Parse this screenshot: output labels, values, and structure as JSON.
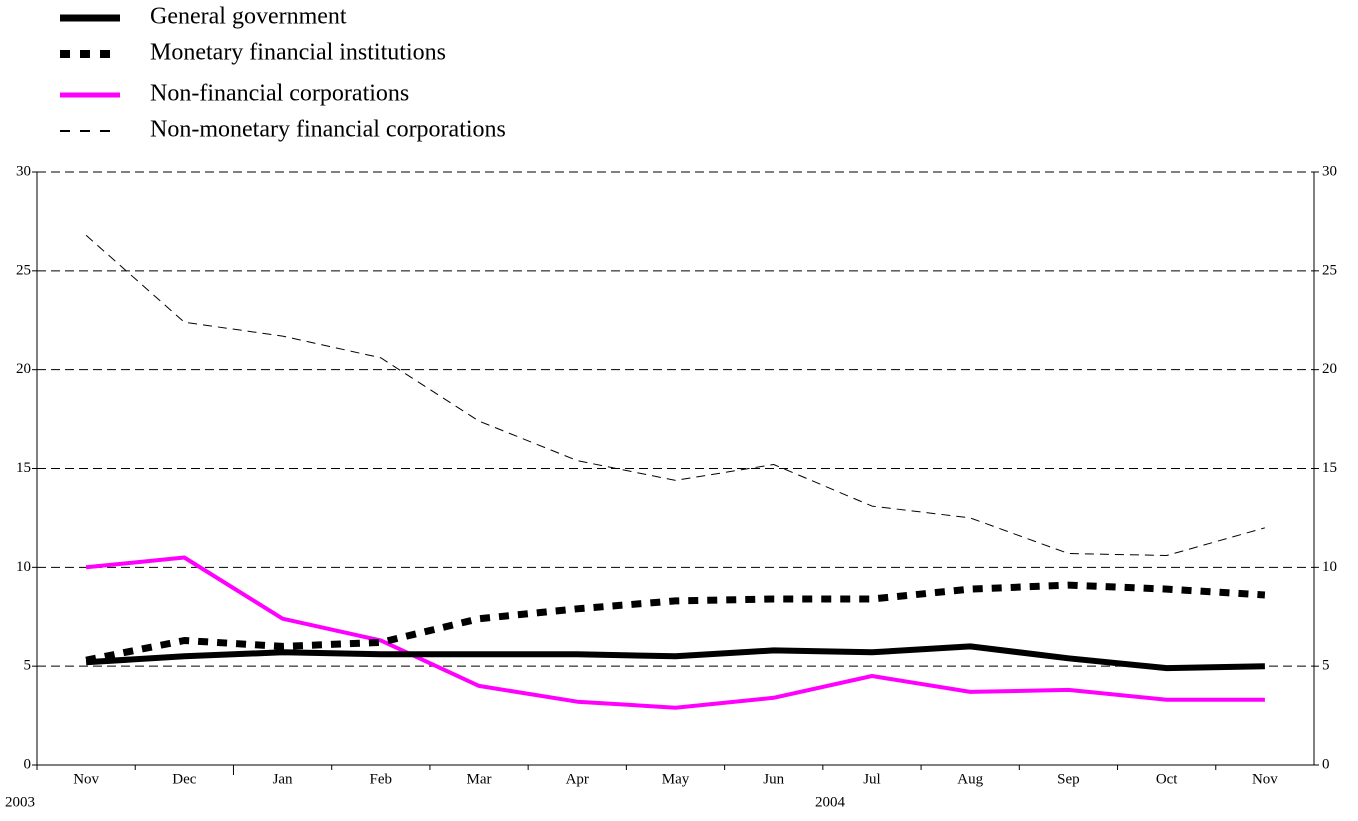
{
  "chart_data": {
    "type": "line",
    "categories": [
      "Nov",
      "Dec",
      "Jan",
      "Feb",
      "Mar",
      "Apr",
      "May",
      "Jun",
      "Jul",
      "Aug",
      "Sep",
      "Oct",
      "Nov"
    ],
    "x_groups": [
      "2003",
      "2004"
    ],
    "series": [
      {
        "name": "General government",
        "color": "#000000",
        "style": "solid-thick",
        "values": [
          5.2,
          5.5,
          5.7,
          5.6,
          5.6,
          5.6,
          5.5,
          5.8,
          5.7,
          6.0,
          5.4,
          4.9,
          5.0
        ]
      },
      {
        "name": "Monetary financial institutions",
        "color": "#000000",
        "style": "dotted-thick",
        "values": [
          5.3,
          6.3,
          6.0,
          6.2,
          7.4,
          7.9,
          8.3,
          8.4,
          8.4,
          8.9,
          9.1,
          8.9,
          8.6
        ]
      },
      {
        "name": "Non-financial corporations",
        "color": "#ff00ff",
        "style": "solid",
        "values": [
          10.0,
          10.5,
          7.4,
          6.3,
          4.0,
          3.2,
          2.9,
          3.4,
          4.5,
          3.7,
          3.8,
          3.3,
          3.3
        ]
      },
      {
        "name": "Non-monetary financial corporations",
        "color": "#000000",
        "style": "dashed-thin",
        "values": [
          26.8,
          22.4,
          21.7,
          20.6,
          17.4,
          15.4,
          14.4,
          15.2,
          13.1,
          12.5,
          10.7,
          10.6,
          12.0
        ]
      }
    ],
    "ylim": [
      0,
      30
    ],
    "yticks": [
      0,
      5,
      10,
      15,
      20,
      25,
      30
    ],
    "y2lim": [
      0,
      30
    ],
    "y2ticks": [
      0,
      5,
      10,
      15,
      20,
      25,
      30
    ],
    "grid": true,
    "legend": "top-left"
  }
}
